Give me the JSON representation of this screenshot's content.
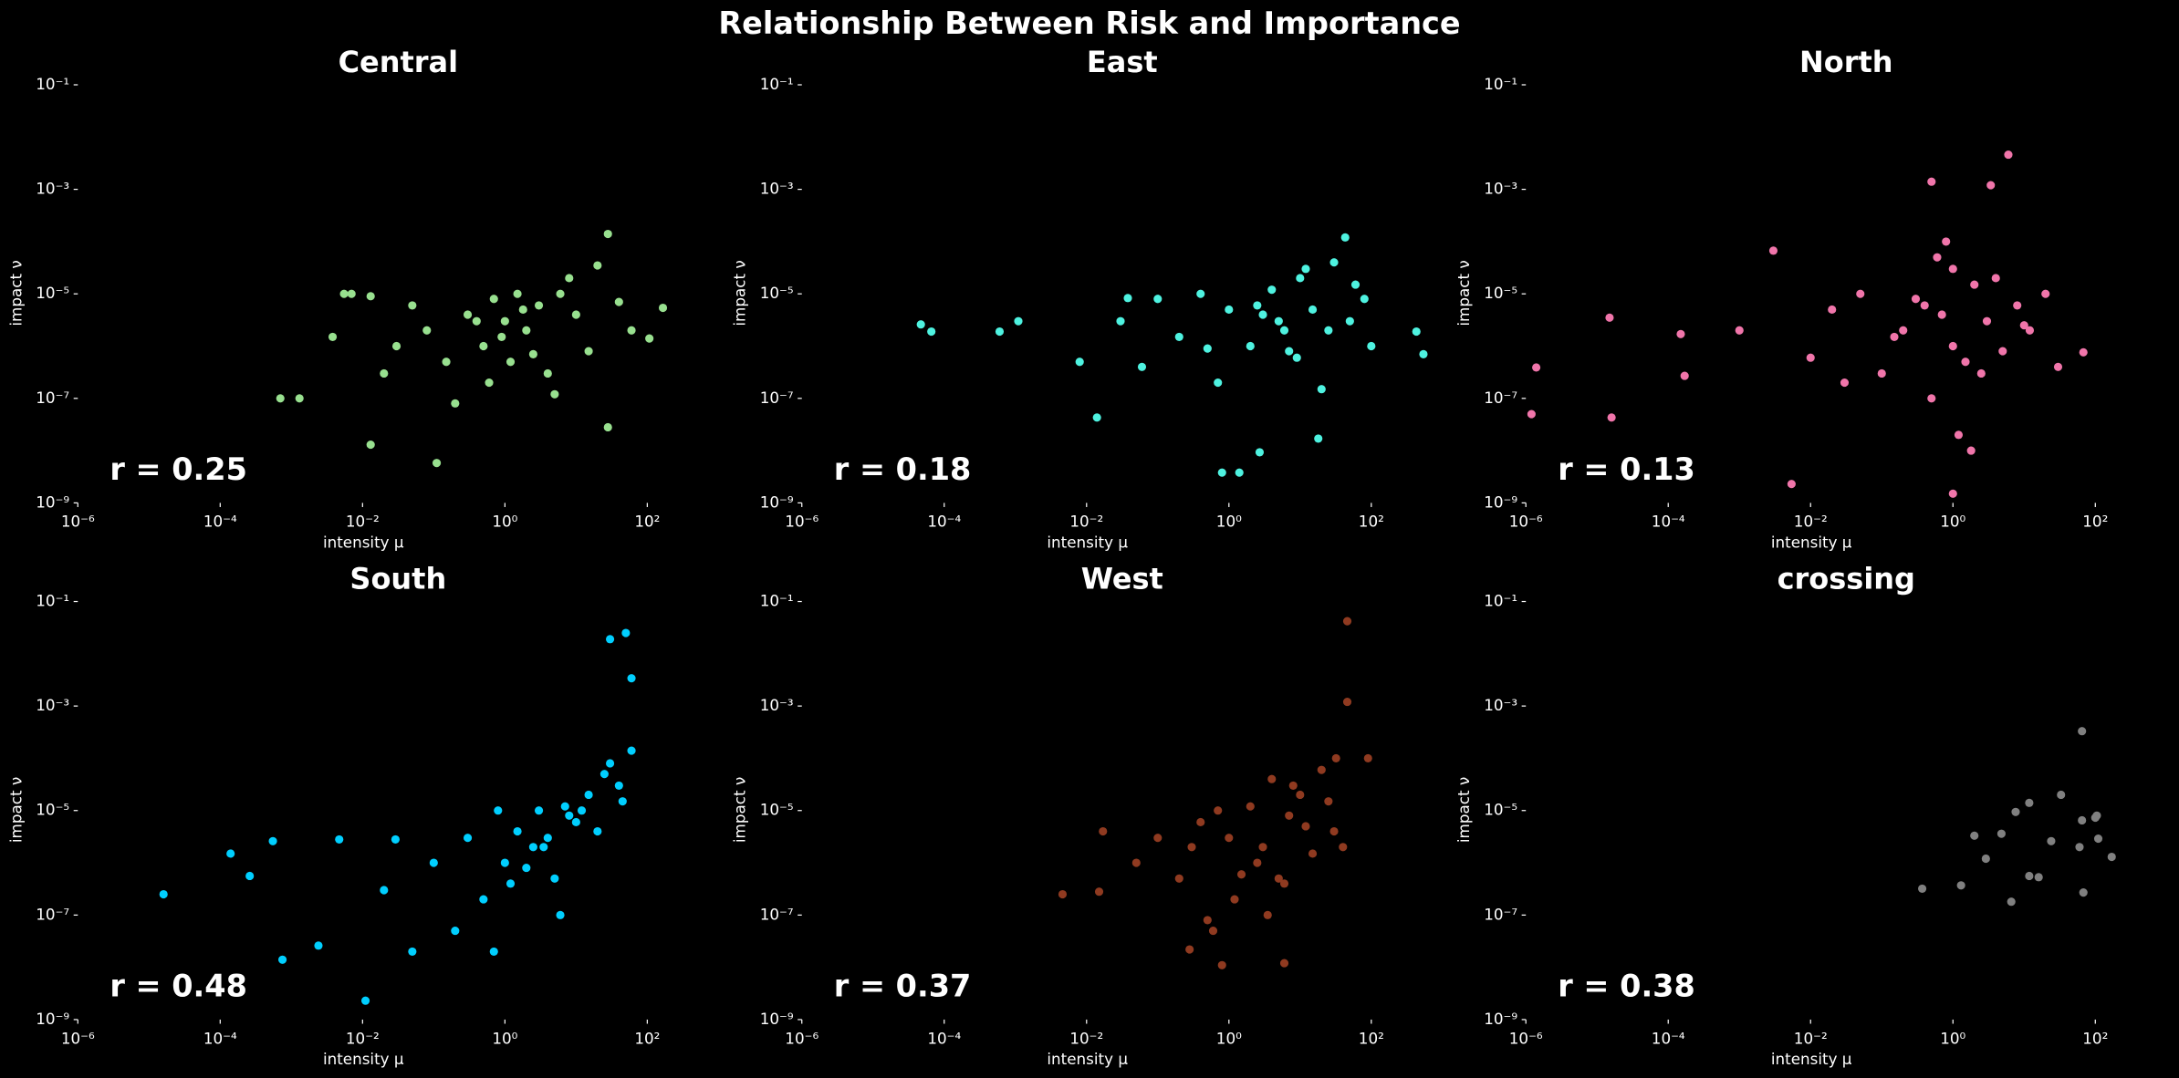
{
  "title": "Relationship Between Risk and Importance",
  "chart_data": [
    {
      "type": "scatter",
      "title": "Central",
      "xlabel": "intensity μ",
      "ylabel": "impact ν",
      "annotation": "r = 0.25",
      "color": "#98e08f",
      "xscale": "log",
      "yscale": "log",
      "xlim": [
        1e-06,
        1000
      ],
      "ylim": [
        1e-09,
        0.1
      ],
      "xticks": [
        {
          "value": 1e-06,
          "label": "10⁻⁶"
        },
        {
          "value": 0.0001,
          "label": "10⁻⁴"
        },
        {
          "value": 0.01,
          "label": "10⁻²"
        },
        {
          "value": 1,
          "label": "10⁰"
        },
        {
          "value": 100,
          "label": "10²"
        }
      ],
      "yticks": [
        {
          "value": 1e-09,
          "label": "10⁻⁹"
        },
        {
          "value": 1e-07,
          "label": "10⁻⁷"
        },
        {
          "value": 1e-05,
          "label": "10⁻⁵"
        },
        {
          "value": 0.001,
          "label": "10⁻³"
        },
        {
          "value": 0.1,
          "label": "10⁻¹"
        }
      ],
      "x": [
        0.0007,
        0.0013,
        0.0038,
        0.0055,
        0.007,
        0.013,
        0.013,
        0.11,
        28,
        28,
        20,
        166,
        107,
        0.02,
        0.05,
        0.08,
        0.15,
        0.3,
        0.5,
        0.7,
        1,
        1.2,
        1.5,
        2,
        3,
        4,
        6,
        10,
        15,
        40,
        60,
        0.6,
        0.9,
        1.8,
        2.5,
        0.4,
        5,
        8,
        0.03,
        0.2
      ],
      "y": [
        1e-07,
        1e-07,
        1.5e-06,
        1e-05,
        1e-05,
        9e-06,
        1.3e-08,
        5.8e-09,
        0.00014,
        2.8e-08,
        3.5e-05,
        5.4e-06,
        1.4e-06,
        3e-07,
        6e-06,
        2e-06,
        5e-07,
        4e-06,
        1e-06,
        8e-06,
        3e-06,
        5e-07,
        1e-05,
        2e-06,
        6e-06,
        3e-07,
        1e-05,
        4e-06,
        8e-07,
        7e-06,
        2e-06,
        2e-07,
        1.5e-06,
        5e-06,
        7e-07,
        3e-06,
        1.2e-07,
        2e-05,
        1e-06,
        8e-08
      ]
    },
    {
      "type": "scatter",
      "title": "East",
      "xlabel": "intensity μ",
      "ylabel": "impact ν",
      "annotation": "r = 0.18",
      "color": "#4ef2e0",
      "xscale": "log",
      "yscale": "log",
      "xlim": [
        1e-06,
        1000
      ],
      "ylim": [
        1e-09,
        0.1
      ],
      "xticks": [
        {
          "value": 1e-06,
          "label": "10⁻⁶"
        },
        {
          "value": 0.0001,
          "label": "10⁻⁴"
        },
        {
          "value": 0.01,
          "label": "10⁻²"
        },
        {
          "value": 1,
          "label": "10⁰"
        },
        {
          "value": 100,
          "label": "10²"
        }
      ],
      "yticks": [
        {
          "value": 1e-09,
          "label": "10⁻⁹"
        },
        {
          "value": 1e-07,
          "label": "10⁻⁷"
        },
        {
          "value": 1e-05,
          "label": "10⁻⁵"
        },
        {
          "value": 0.001,
          "label": "10⁻³"
        },
        {
          "value": 0.1,
          "label": "10⁻¹"
        }
      ],
      "x": [
        4.7e-05,
        6.6e-05,
        0.0006,
        0.0011,
        0.008,
        0.038,
        0.014,
        0.8,
        1.4,
        2.7,
        43,
        430,
        540,
        18,
        0.03,
        0.06,
        0.1,
        0.2,
        0.4,
        0.7,
        1,
        2,
        3,
        5,
        7,
        10,
        15,
        20,
        30,
        50,
        80,
        100,
        4,
        6,
        9,
        12,
        2.5,
        0.5,
        25,
        60
      ],
      "y": [
        2.6e-06,
        1.9e-06,
        1.9e-06,
        3e-06,
        5e-07,
        8.3e-06,
        4.3e-08,
        3.8e-09,
        3.8e-09,
        9.3e-09,
        0.00012,
        1.9e-06,
        7e-07,
        1.7e-08,
        3e-06,
        4e-07,
        8e-06,
        1.5e-06,
        1e-05,
        2e-07,
        5e-06,
        1e-06,
        4e-06,
        3e-06,
        8e-07,
        2e-05,
        5e-06,
        1.5e-07,
        4e-05,
        3e-06,
        8e-06,
        1e-06,
        1.2e-05,
        2e-06,
        6e-07,
        3e-05,
        6e-06,
        9e-07,
        2e-06,
        1.5e-05
      ]
    },
    {
      "type": "scatter",
      "title": "North",
      "xlabel": "intensity μ",
      "ylabel": "impact ν",
      "annotation": "r = 0.13",
      "color": "#f075aa",
      "xscale": "log",
      "yscale": "log",
      "xlim": [
        1e-06,
        1000
      ],
      "ylim": [
        1e-09,
        0.1
      ],
      "xticks": [
        {
          "value": 1e-06,
          "label": "10⁻⁶"
        },
        {
          "value": 0.0001,
          "label": "10⁻⁴"
        },
        {
          "value": 0.01,
          "label": "10⁻²"
        },
        {
          "value": 1,
          "label": "10⁰"
        },
        {
          "value": 100,
          "label": "10²"
        }
      ],
      "yticks": [
        {
          "value": 1e-09,
          "label": "10⁻⁹"
        },
        {
          "value": 1e-07,
          "label": "10⁻⁷"
        },
        {
          "value": 1e-05,
          "label": "10⁻⁵"
        },
        {
          "value": 0.001,
          "label": "10⁻³"
        },
        {
          "value": 0.1,
          "label": "10⁻¹"
        }
      ],
      "x": [
        1.4e-06,
        1.2e-06,
        1.6e-05,
        1.5e-05,
        0.00015,
        0.00017,
        0.003,
        0.0054,
        6,
        3.4,
        68,
        1,
        0.5,
        0.001,
        0.01,
        0.02,
        0.05,
        0.1,
        0.2,
        0.3,
        0.5,
        0.7,
        1,
        1,
        1.5,
        2,
        3,
        5,
        8,
        12,
        20,
        30,
        0.8,
        1.2,
        0.4,
        2.5,
        4,
        0.15,
        0.6,
        1.8,
        10,
        0.03
      ],
      "y": [
        3.9e-07,
        5e-08,
        4.3e-08,
        3.5e-06,
        1.7e-06,
        2.7e-07,
        6.7e-05,
        2.3e-09,
        0.0046,
        0.0012,
        7.6e-07,
        1.5e-09,
        0.0014,
        2e-06,
        6e-07,
        5e-06,
        1e-05,
        3e-07,
        2e-06,
        8e-06,
        1e-07,
        4e-06,
        3e-05,
        1e-06,
        5e-07,
        1.5e-05,
        3e-06,
        8e-07,
        6e-06,
        2e-06,
        1e-05,
        4e-07,
        0.0001,
        2e-08,
        6e-06,
        3e-07,
        2e-05,
        1.5e-06,
        5e-05,
        1e-08,
        2.5e-06,
        2e-07
      ]
    },
    {
      "type": "scatter",
      "title": "South",
      "xlabel": "intensity μ",
      "ylabel": "impact ν",
      "annotation": "r = 0.48",
      "color": "#00cfff",
      "xscale": "log",
      "yscale": "log",
      "xlim": [
        1e-06,
        1000
      ],
      "ylim": [
        1e-09,
        0.1
      ],
      "xticks": [
        {
          "value": 1e-06,
          "label": "10⁻⁶"
        },
        {
          "value": 0.0001,
          "label": "10⁻⁴"
        },
        {
          "value": 0.01,
          "label": "10⁻²"
        },
        {
          "value": 1,
          "label": "10⁰"
        },
        {
          "value": 100,
          "label": "10²"
        }
      ],
      "yticks": [
        {
          "value": 1e-09,
          "label": "10⁻⁹"
        },
        {
          "value": 1e-07,
          "label": "10⁻⁷"
        },
        {
          "value": 1e-05,
          "label": "10⁻⁵"
        },
        {
          "value": 0.001,
          "label": "10⁻³"
        },
        {
          "value": 0.1,
          "label": "10⁻¹"
        }
      ],
      "x": [
        1.6e-05,
        0.00014,
        0.00055,
        0.00026,
        0.00075,
        0.011,
        30,
        50,
        60,
        60,
        0.0047,
        0.029,
        0.0024,
        0.02,
        0.05,
        0.1,
        0.2,
        0.3,
        0.5,
        0.8,
        1,
        1.5,
        2,
        3,
        4,
        5,
        7,
        10,
        15,
        20,
        30,
        40,
        1.2,
        2.5,
        6,
        0.7,
        12,
        25,
        8,
        3.5,
        45
      ],
      "y": [
        2.5e-07,
        1.5e-06,
        2.6e-06,
        5.6e-07,
        1.4e-08,
        2.3e-09,
        0.019,
        0.025,
        0.0034,
        0.00014,
        2.8e-06,
        2.8e-06,
        2.6e-08,
        3e-07,
        2e-08,
        1e-06,
        5e-08,
        3e-06,
        2e-07,
        1e-05,
        1e-06,
        4e-06,
        8e-07,
        1e-05,
        3e-06,
        5e-07,
        1.2e-05,
        6e-06,
        2e-05,
        4e-06,
        8e-05,
        3e-05,
        4e-07,
        2e-06,
        1e-07,
        2e-08,
        1e-05,
        5e-05,
        8e-06,
        2e-06,
        1.5e-05
      ]
    },
    {
      "type": "scatter",
      "title": "West",
      "xlabel": "intensity μ",
      "ylabel": "impact ν",
      "annotation": "r = 0.37",
      "color": "#8f3a20",
      "xscale": "log",
      "yscale": "log",
      "xlim": [
        1e-06,
        1000
      ],
      "ylim": [
        1e-09,
        0.1
      ],
      "xticks": [
        {
          "value": 1e-06,
          "label": "10⁻⁶"
        },
        {
          "value": 0.0001,
          "label": "10⁻⁴"
        },
        {
          "value": 0.01,
          "label": "10⁻²"
        },
        {
          "value": 1,
          "label": "10⁰"
        },
        {
          "value": 100,
          "label": "10²"
        }
      ],
      "yticks": [
        {
          "value": 1e-09,
          "label": "10⁻⁹"
        },
        {
          "value": 1e-07,
          "label": "10⁻⁷"
        },
        {
          "value": 1e-05,
          "label": "10⁻⁵"
        },
        {
          "value": 0.001,
          "label": "10⁻³"
        },
        {
          "value": 0.1,
          "label": "10⁻¹"
        }
      ],
      "x": [
        46,
        46,
        0.0046,
        0.015,
        0.017,
        0.28,
        0.8,
        6,
        32,
        90,
        0.05,
        0.1,
        0.2,
        0.3,
        0.5,
        0.7,
        1,
        1.5,
        2,
        3,
        4,
        5,
        7,
        10,
        15,
        20,
        30,
        1.2,
        2.5,
        8,
        12,
        0.4,
        3.5,
        25,
        40,
        0.6,
        6
      ],
      "y": [
        0.042,
        0.0012,
        2.5e-07,
        2.8e-07,
        4e-06,
        2.2e-08,
        1.1e-08,
        1.2e-08,
        0.0001,
        0.0001,
        1e-06,
        3e-06,
        5e-07,
        2e-06,
        8e-08,
        1e-05,
        3e-06,
        6e-07,
        1.2e-05,
        2e-06,
        4e-05,
        5e-07,
        8e-06,
        2e-05,
        1.5e-06,
        6e-05,
        4e-06,
        2e-07,
        1e-06,
        3e-05,
        5e-06,
        6e-06,
        1e-07,
        1.5e-05,
        2e-06,
        5e-08,
        4e-07
      ]
    },
    {
      "type": "scatter",
      "title": "crossing",
      "xlabel": "intensity μ",
      "ylabel": "impact ν",
      "annotation": "r = 0.38",
      "color": "#808080",
      "xscale": "log",
      "yscale": "log",
      "xlim": [
        1e-06,
        1000
      ],
      "ylim": [
        1e-09,
        0.1
      ],
      "xticks": [
        {
          "value": 1e-06,
          "label": "10⁻⁶"
        },
        {
          "value": 0.0001,
          "label": "10⁻⁴"
        },
        {
          "value": 0.01,
          "label": "10⁻²"
        },
        {
          "value": 1,
          "label": "10⁰"
        },
        {
          "value": 100,
          "label": "10²"
        }
      ],
      "yticks": [
        {
          "value": 1e-09,
          "label": "10⁻⁹"
        },
        {
          "value": 1e-07,
          "label": "10⁻⁷"
        },
        {
          "value": 1e-05,
          "label": "10⁻⁵"
        },
        {
          "value": 0.001,
          "label": "10⁻³"
        },
        {
          "value": 0.1,
          "label": "10⁻¹"
        }
      ],
      "x": [
        0.37,
        1.3,
        2,
        2.9,
        4.8,
        6.6,
        7.6,
        11.8,
        11.8,
        16,
        24,
        33,
        60,
        65,
        65,
        68,
        100,
        105,
        110,
        170
      ],
      "y": [
        3.2e-07,
        3.7e-07,
        3.3e-06,
        1.2e-06,
        3.6e-06,
        1.8e-07,
        9.4e-06,
        1.4e-05,
        5.6e-07,
        5.3e-07,
        2.6e-06,
        2e-05,
        2e-06,
        0.00033,
        6.5e-06,
        2.7e-07,
        7.3e-06,
        8e-06,
        2.9e-06,
        1.3e-06
      ]
    }
  ]
}
